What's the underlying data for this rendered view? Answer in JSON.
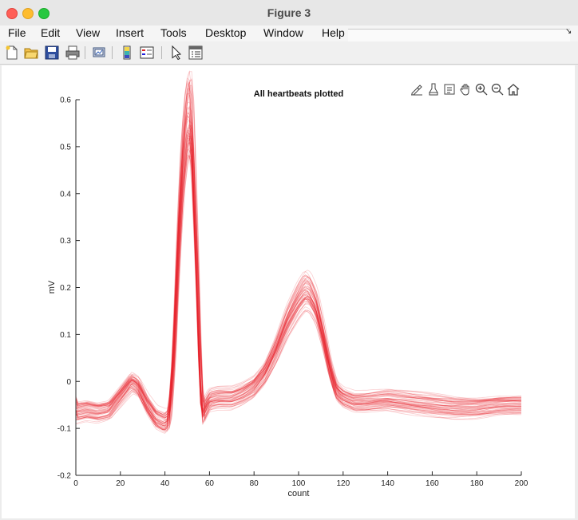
{
  "window": {
    "title": "Figure 3"
  },
  "menu": {
    "items": [
      "File",
      "Edit",
      "View",
      "Insert",
      "Tools",
      "Desktop",
      "Window",
      "Help"
    ],
    "end_glyph": "↘"
  },
  "toolbar": {
    "icons": [
      "new-figure-icon",
      "open-file-icon",
      "save-icon",
      "print-icon",
      "link-plot-icon",
      "insert-colorbar-icon",
      "insert-legend-icon",
      "edit-pointer-icon",
      "property-inspector-icon"
    ]
  },
  "axes_toolbar": {
    "icons": [
      "brush-data-icon",
      "data-tips-icon",
      "export-icon",
      "pan-icon",
      "zoom-in-icon",
      "zoom-out-icon",
      "restore-view-icon"
    ]
  },
  "colors": {
    "trace": "#e8202a",
    "axes": "#262626"
  },
  "chart_data": {
    "type": "line",
    "title": "All heartbeats plotted",
    "xlabel": "count",
    "ylabel": "mV",
    "xlim": [
      0,
      200
    ],
    "ylim": [
      -0.2,
      0.6
    ],
    "xticks": [
      "0",
      "20",
      "40",
      "60",
      "80",
      "100",
      "120",
      "140",
      "160",
      "180",
      "200"
    ],
    "yticks": [
      "-0.2",
      "-0.1",
      "0",
      "0.1",
      "0.2",
      "0.3",
      "0.4",
      "0.5",
      "0.6"
    ],
    "grid": false,
    "legend": "none",
    "representative_beat": {
      "x": [
        0,
        5,
        10,
        15,
        20,
        25,
        28,
        32,
        36,
        40,
        42,
        44,
        46,
        48,
        50,
        51,
        52,
        54,
        56,
        57,
        58,
        60,
        64,
        70,
        75,
        80,
        85,
        90,
        95,
        100,
        103,
        105,
        108,
        111,
        114,
        117,
        120,
        125,
        130,
        140,
        150,
        160,
        170,
        180,
        190,
        200
      ],
      "y": [
        -0.065,
        -0.06,
        -0.065,
        -0.06,
        -0.03,
        0.0,
        -0.01,
        -0.05,
        -0.08,
        -0.09,
        -0.08,
        0.05,
        0.28,
        0.46,
        0.555,
        0.57,
        0.55,
        0.3,
        0.0,
        -0.07,
        -0.06,
        -0.04,
        -0.035,
        -0.035,
        -0.025,
        -0.01,
        0.02,
        0.07,
        0.13,
        0.175,
        0.195,
        0.19,
        0.16,
        0.1,
        0.03,
        -0.02,
        -0.035,
        -0.045,
        -0.045,
        -0.04,
        -0.045,
        -0.05,
        -0.055,
        -0.055,
        -0.05,
        -0.05
      ]
    },
    "beat_count_overlaid": 60
  }
}
